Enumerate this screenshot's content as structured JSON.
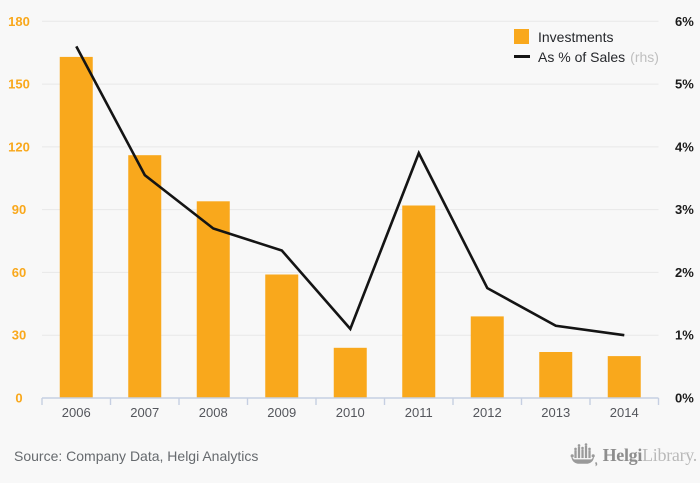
{
  "colors": {
    "accent": "#f9a81c",
    "line": "#141414",
    "axis": "#c6cfe2",
    "grid": "#e8e8e8",
    "background": "#f8f8f8"
  },
  "legend": {
    "investments_label": "Investments",
    "sales_label": "As % of Sales",
    "sales_suffix": "(rhs)"
  },
  "footer": {
    "source": "Source: Company Data, Helgi Analytics",
    "logo_primary": "Helgi",
    "logo_secondary": "Library."
  },
  "chart_data": {
    "type": "bar",
    "title": "",
    "categories": [
      "2006",
      "2007",
      "2008",
      "2009",
      "2010",
      "2011",
      "2012",
      "2013",
      "2014"
    ],
    "series": [
      {
        "name": "Investments",
        "type": "bar",
        "axis": "left",
        "color": "#f9a81c",
        "values": [
          163,
          116,
          94,
          59,
          24,
          92,
          39,
          22,
          20
        ]
      },
      {
        "name": "As % of Sales (rhs)",
        "type": "line",
        "axis": "right",
        "color": "#141414",
        "values": [
          5.6,
          3.55,
          2.7,
          2.35,
          1.1,
          3.9,
          1.75,
          1.15,
          1.0
        ]
      }
    ],
    "left_axis": {
      "min": 0,
      "max": 180,
      "step": 30,
      "ticks": [
        "0",
        "30",
        "60",
        "90",
        "120",
        "150",
        "180"
      ]
    },
    "right_axis": {
      "min": 0,
      "max": 6,
      "step": 1,
      "ticks": [
        "0%",
        "1%",
        "2%",
        "3%",
        "4%",
        "5%",
        "6%"
      ]
    },
    "grid": true,
    "legend_position": "top-right"
  }
}
